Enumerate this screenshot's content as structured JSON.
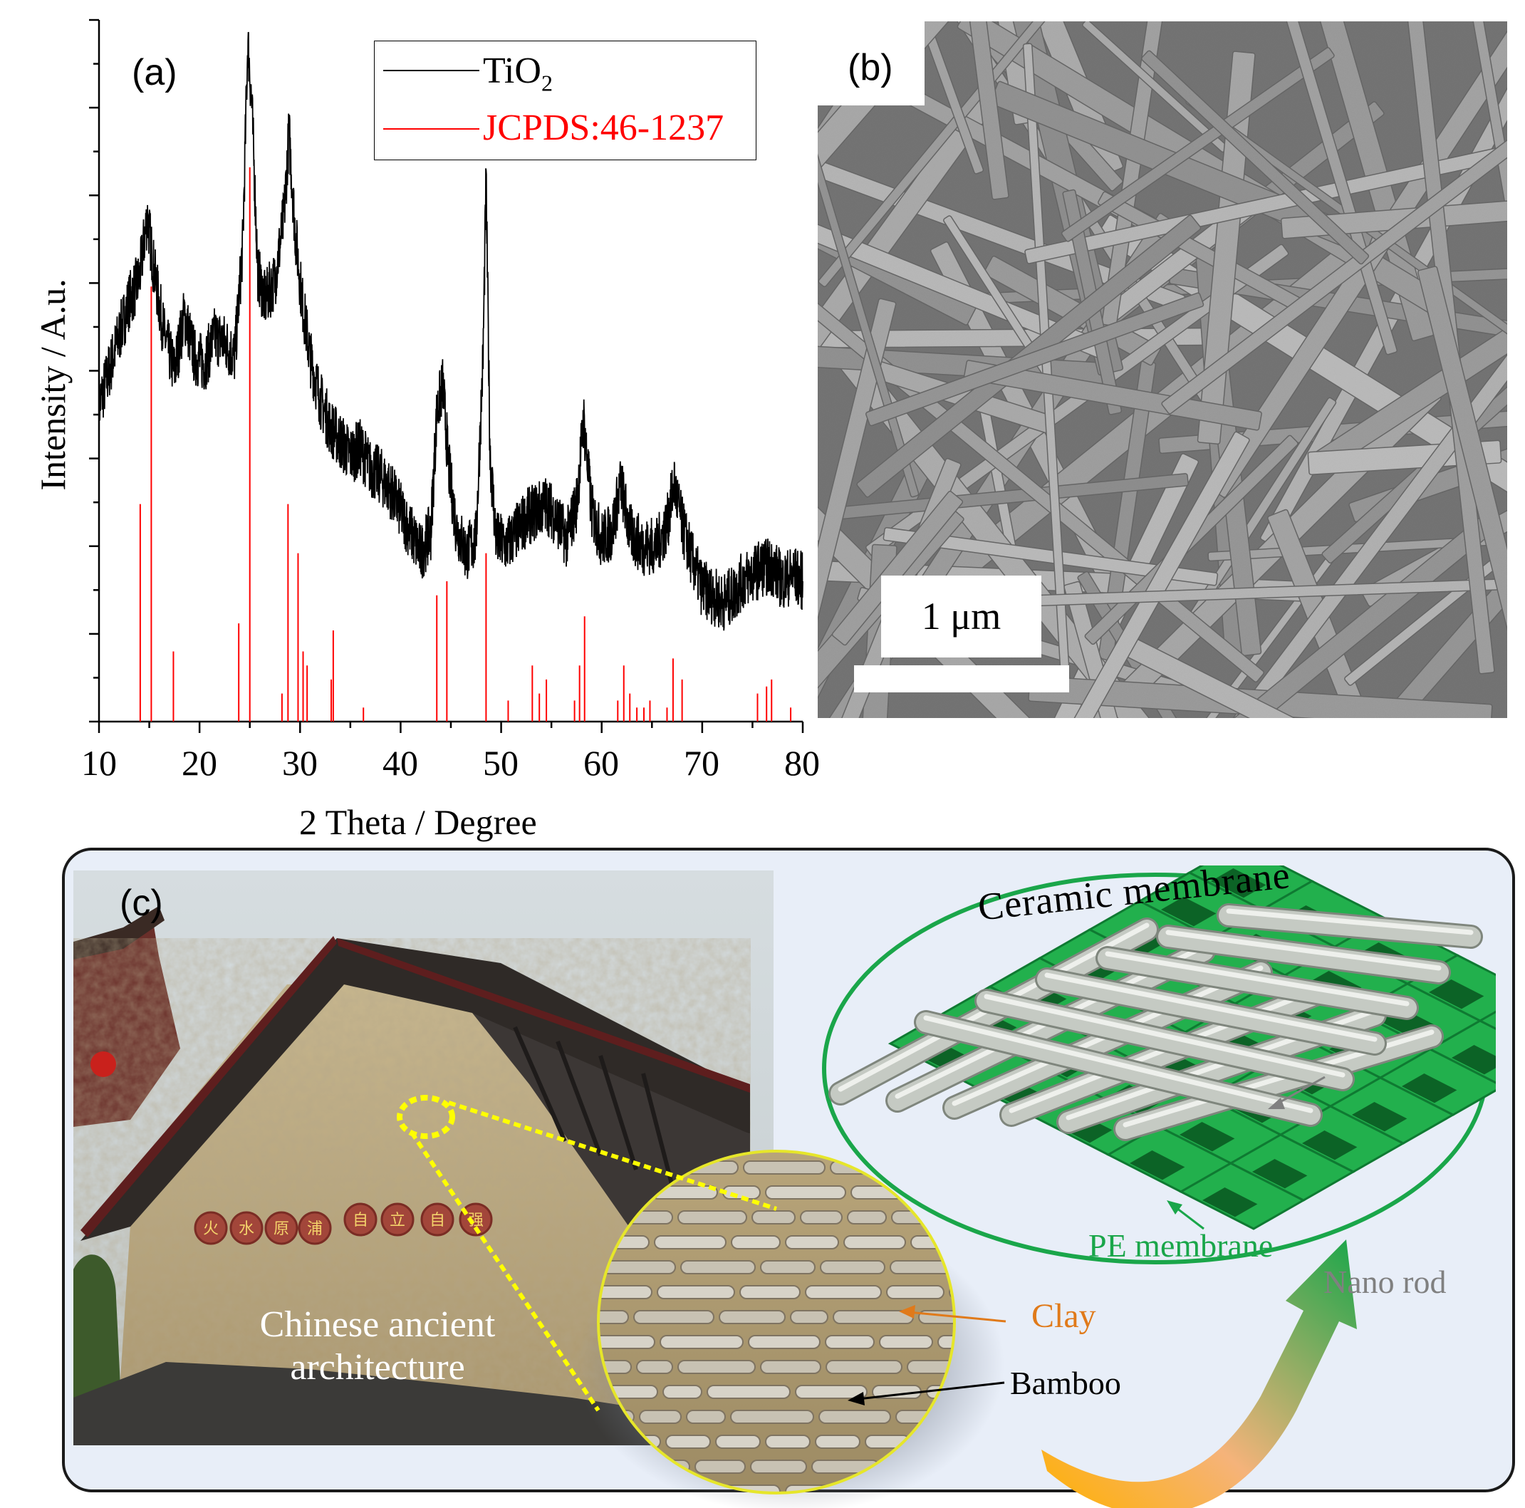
{
  "panel_a": {
    "label": "(a)",
    "ylabel": "Intensity / A.u.",
    "xlabel": "2 Theta / Degree",
    "xticks": [
      "10",
      "20",
      "30",
      "40",
      "50",
      "60",
      "70",
      "80"
    ],
    "legend": [
      {
        "text": "TiO",
        "sub": "2",
        "color": "#000000"
      },
      {
        "text": "JCPDS:46-1237",
        "sub": "",
        "color": "#ff0000"
      }
    ]
  },
  "chart_data": {
    "type": "line",
    "xlabel": "2 Theta / Degree",
    "ylabel": "Intensity / A.u.",
    "xlim": [
      10,
      80
    ],
    "legend_position": "top-right",
    "series": [
      {
        "name": "TiO2",
        "color": "#000000",
        "style": "line",
        "points": [
          [
            10,
            0.45
          ],
          [
            11,
            0.5
          ],
          [
            12,
            0.55
          ],
          [
            13,
            0.6
          ],
          [
            14,
            0.63
          ],
          [
            14.8,
            0.72
          ],
          [
            15.5,
            0.64
          ],
          [
            16.5,
            0.55
          ],
          [
            17.5,
            0.5
          ],
          [
            18.5,
            0.58
          ],
          [
            19.5,
            0.52
          ],
          [
            20.5,
            0.51
          ],
          [
            21.5,
            0.55
          ],
          [
            22.5,
            0.54
          ],
          [
            23.5,
            0.52
          ],
          [
            24.3,
            0.68
          ],
          [
            24.8,
            0.97
          ],
          [
            25.2,
            0.88
          ],
          [
            25.8,
            0.64
          ],
          [
            26.5,
            0.6
          ],
          [
            27.5,
            0.63
          ],
          [
            28.4,
            0.72
          ],
          [
            28.9,
            0.84
          ],
          [
            29.5,
            0.7
          ],
          [
            30.2,
            0.6
          ],
          [
            31,
            0.52
          ],
          [
            32,
            0.46
          ],
          [
            33,
            0.42
          ],
          [
            34,
            0.4
          ],
          [
            35,
            0.38
          ],
          [
            36,
            0.39
          ],
          [
            37,
            0.36
          ],
          [
            38,
            0.35
          ],
          [
            39,
            0.33
          ],
          [
            40,
            0.3
          ],
          [
            41,
            0.27
          ],
          [
            42,
            0.24
          ],
          [
            43,
            0.27
          ],
          [
            43.6,
            0.44
          ],
          [
            44.2,
            0.48
          ],
          [
            44.8,
            0.36
          ],
          [
            45.5,
            0.28
          ],
          [
            46.5,
            0.24
          ],
          [
            47.5,
            0.26
          ],
          [
            48.2,
            0.52
          ],
          [
            48.5,
            0.77
          ],
          [
            48.9,
            0.38
          ],
          [
            49.5,
            0.26
          ],
          [
            50.5,
            0.25
          ],
          [
            51.5,
            0.27
          ],
          [
            52.5,
            0.29
          ],
          [
            53.5,
            0.3
          ],
          [
            54.5,
            0.31
          ],
          [
            55.5,
            0.29
          ],
          [
            56.5,
            0.26
          ],
          [
            57.5,
            0.31
          ],
          [
            58.2,
            0.43
          ],
          [
            59,
            0.3
          ],
          [
            60,
            0.26
          ],
          [
            61,
            0.27
          ],
          [
            61.9,
            0.34
          ],
          [
            62.8,
            0.27
          ],
          [
            64,
            0.25
          ],
          [
            65.5,
            0.25
          ],
          [
            66.5,
            0.28
          ],
          [
            67.2,
            0.34
          ],
          [
            68,
            0.28
          ],
          [
            69,
            0.23
          ],
          [
            70,
            0.19
          ],
          [
            71,
            0.18
          ],
          [
            72,
            0.17
          ],
          [
            73,
            0.18
          ],
          [
            74,
            0.2
          ],
          [
            75,
            0.21
          ],
          [
            76,
            0.22
          ],
          [
            77,
            0.22
          ],
          [
            78,
            0.2
          ],
          [
            79,
            0.21
          ],
          [
            80,
            0.2
          ]
        ]
      },
      {
        "name": "JCPDS:46-1237",
        "color": "#ff0000",
        "style": "stick",
        "x": [
          14.1,
          15.2,
          17.4,
          23.9,
          25.0,
          28.2,
          28.8,
          29.8,
          30.3,
          30.7,
          33.1,
          33.3,
          36.3,
          43.6,
          44.6,
          48.5,
          50.7,
          53.1,
          53.8,
          54.5,
          57.3,
          57.8,
          58.3,
          61.6,
          62.2,
          62.8,
          63.5,
          64.2,
          64.8,
          66.5,
          67.1,
          68.0,
          75.5,
          76.4,
          76.9,
          78.8
        ],
        "y": [
          0.31,
          0.62,
          0.1,
          0.14,
          0.79,
          0.04,
          0.31,
          0.24,
          0.1,
          0.08,
          0.06,
          0.13,
          0.02,
          0.18,
          0.2,
          0.24,
          0.03,
          0.08,
          0.04,
          0.06,
          0.03,
          0.08,
          0.15,
          0.03,
          0.08,
          0.04,
          0.02,
          0.02,
          0.03,
          0.02,
          0.09,
          0.06,
          0.04,
          0.05,
          0.06,
          0.02
        ]
      }
    ]
  },
  "panel_b": {
    "label": "(b)",
    "scale_bar": "1 μm"
  },
  "panel_c": {
    "label": "(c)",
    "caption_line1": "Chinese ancient",
    "caption_line2": "architecture",
    "title": "Ceramic membrane",
    "nano_rod": "Nano rod",
    "pe_membrane": "PE membrane",
    "clay": "Clay",
    "bamboo": "Bamboo",
    "signboard_chars": [
      "火",
      "水",
      "原",
      "浦",
      "自",
      "立",
      "自",
      "强"
    ],
    "colors": {
      "green": "#1aa64a",
      "clay": "#e07a1a",
      "nano": "#808080",
      "dotted": "#ffff00"
    }
  }
}
